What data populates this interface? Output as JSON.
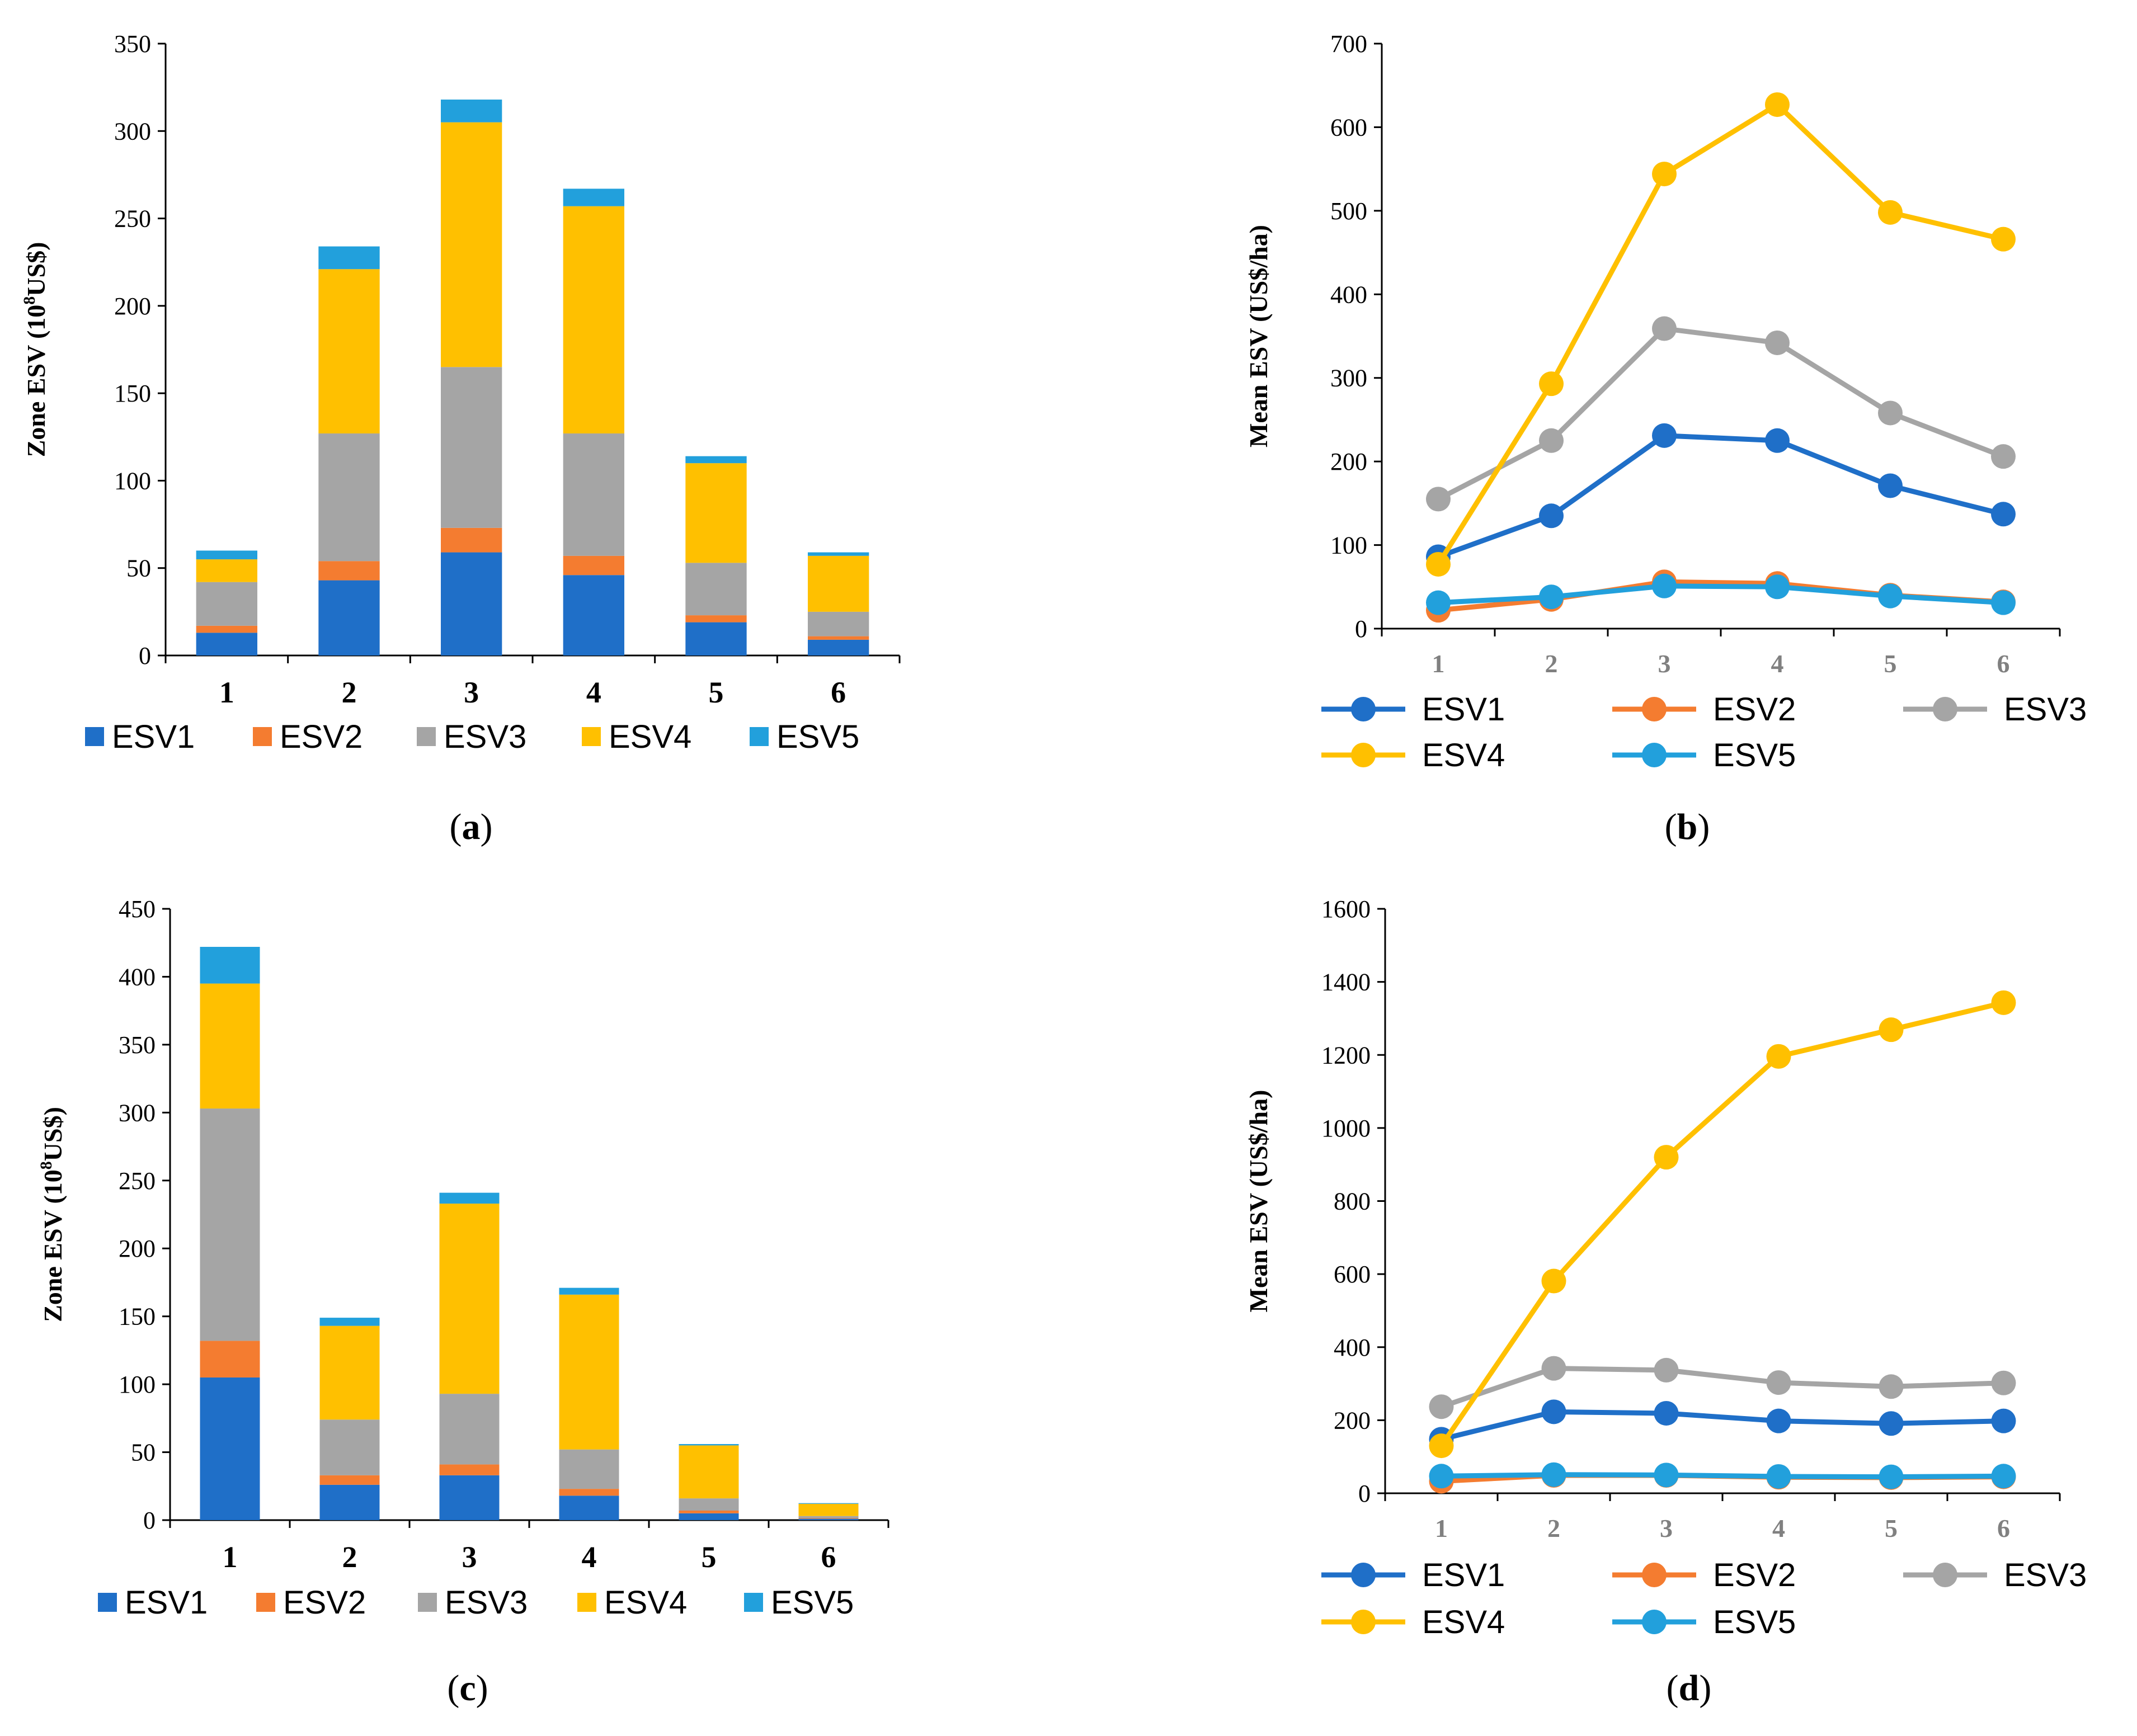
{
  "colors": {
    "ESV1": "#1f6fc8",
    "ESV2": "#f47c30",
    "ESV3": "#a5a5a5",
    "ESV4": "#ffc000",
    "ESV5": "#22a0dc"
  },
  "chart_data": [
    {
      "id": "a",
      "type": "bar",
      "stacked": true,
      "caption": "a",
      "ylabel_main": "Zone ESV  (10",
      "ylabel_sup": "8",
      "ylabel_end": "US$)",
      "ylim": [
        0,
        350
      ],
      "yticks": [
        0,
        50,
        100,
        150,
        200,
        250,
        300,
        350
      ],
      "categories": [
        "1",
        "2",
        "3",
        "4",
        "5",
        "6"
      ],
      "series": [
        {
          "name": "ESV1",
          "values": [
            13,
            43,
            59,
            46,
            19,
            9
          ]
        },
        {
          "name": "ESV2",
          "values": [
            4,
            11,
            14,
            11,
            4,
            2
          ]
        },
        {
          "name": "ESV3",
          "values": [
            25,
            73,
            92,
            70,
            30,
            14
          ]
        },
        {
          "name": "ESV4",
          "values": [
            13,
            94,
            140,
            130,
            57,
            32
          ]
        },
        {
          "name": "ESV5",
          "values": [
            5,
            13,
            13,
            10,
            4,
            2
          ]
        }
      ]
    },
    {
      "id": "b",
      "type": "line",
      "caption": "b",
      "ylabel": "Mean ESV (US$/ha)",
      "ylim": [
        0,
        700
      ],
      "yticks": [
        0,
        100,
        200,
        300,
        400,
        500,
        600,
        700
      ],
      "categories": [
        "1",
        "2",
        "3",
        "4",
        "5",
        "6"
      ],
      "series": [
        {
          "name": "ESV1",
          "values": [
            86,
            135,
            231,
            225,
            171,
            137
          ]
        },
        {
          "name": "ESV2",
          "values": [
            22,
            35,
            56,
            54,
            40,
            32
          ]
        },
        {
          "name": "ESV3",
          "values": [
            155,
            225,
            359,
            342,
            258,
            206
          ]
        },
        {
          "name": "ESV4",
          "values": [
            77,
            293,
            544,
            627,
            498,
            466
          ]
        },
        {
          "name": "ESV5",
          "values": [
            31,
            38,
            51,
            50,
            39,
            31
          ]
        }
      ]
    },
    {
      "id": "c",
      "type": "bar",
      "stacked": true,
      "caption": "c",
      "ylabel_main": "Zone ESV  (10",
      "ylabel_sup": "8",
      "ylabel_end": "US$)",
      "ylim": [
        0,
        450
      ],
      "yticks": [
        0,
        50,
        100,
        150,
        200,
        250,
        300,
        350,
        400,
        450
      ],
      "categories": [
        "1",
        "2",
        "3",
        "4",
        "5",
        "6"
      ],
      "series": [
        {
          "name": "ESV1",
          "values": [
            105,
            26,
            33,
            18,
            5,
            1
          ]
        },
        {
          "name": "ESV2",
          "values": [
            27,
            7,
            8,
            5,
            2,
            0.5
          ]
        },
        {
          "name": "ESV3",
          "values": [
            171,
            41,
            52,
            29,
            9,
            1.5
          ]
        },
        {
          "name": "ESV4",
          "values": [
            92,
            69,
            140,
            114,
            39,
            9
          ]
        },
        {
          "name": "ESV5",
          "values": [
            27,
            6,
            8,
            5,
            1,
            0.5
          ]
        }
      ]
    },
    {
      "id": "d",
      "type": "line",
      "caption": "d",
      "ylabel": "Mean ESV (US$/ha)",
      "ylim": [
        0,
        1600
      ],
      "yticks": [
        0,
        200,
        400,
        600,
        800,
        1000,
        1200,
        1400,
        1600
      ],
      "categories": [
        "1",
        "2",
        "3",
        "4",
        "5",
        "6"
      ],
      "series": [
        {
          "name": "ESV1",
          "values": [
            148,
            223,
            219,
            198,
            191,
            198
          ]
        },
        {
          "name": "ESV2",
          "values": [
            33,
            49,
            49,
            44,
            43,
            45
          ]
        },
        {
          "name": "ESV3",
          "values": [
            237,
            342,
            337,
            303,
            292,
            302
          ]
        },
        {
          "name": "ESV4",
          "values": [
            130,
            581,
            920,
            1196,
            1269,
            1343
          ]
        },
        {
          "name": "ESV5",
          "values": [
            47,
            51,
            50,
            46,
            45,
            47
          ]
        }
      ]
    }
  ]
}
